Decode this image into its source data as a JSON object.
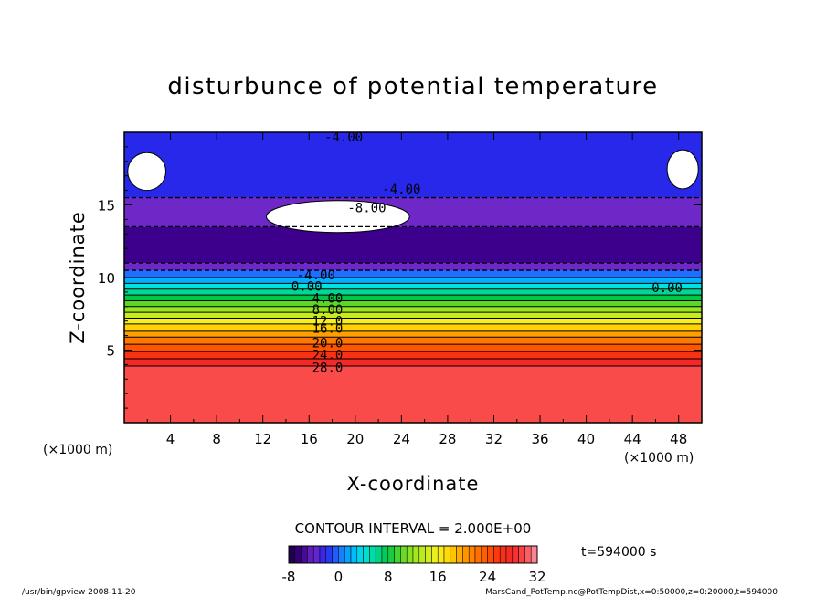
{
  "chart_data": {
    "type": "heatmap",
    "title": "disturbunce of potential temperature",
    "xlabel": "X-coordinate",
    "ylabel": "Z-coordinate",
    "x_unit": "(×1000 m)",
    "x_unit_left": "(×1000 m)",
    "xlim": [
      0,
      50
    ],
    "ylim": [
      0,
      20
    ],
    "x_ticks": [
      "4",
      "8",
      "12",
      "16",
      "20",
      "24",
      "28",
      "32",
      "36",
      "40",
      "44",
      "48"
    ],
    "y_ticks": [
      "5",
      "10",
      "15"
    ],
    "contour_interval_text": "CONTOUR INTERVAL = 2.000E+00",
    "time_text": "t=594000 s",
    "colorbar": {
      "min": -8,
      "max": 32,
      "tick_labels": [
        "-8",
        "0",
        "8",
        "16",
        "24",
        "32"
      ]
    },
    "contour_labels": [
      {
        "text": "-4.00",
        "x": 19.0,
        "z": 19.7
      },
      {
        "text": "-4.00",
        "x": 24.0,
        "z": 16.1
      },
      {
        "text": "-8.00",
        "x": 21.0,
        "z": 14.8
      },
      {
        "text": "-4.00",
        "x": 16.6,
        "z": 10.2
      },
      {
        "text": "0.00",
        "x": 15.8,
        "z": 9.4
      },
      {
        "text": "0.00",
        "x": 47.0,
        "z": 9.3
      },
      {
        "text": "4.00",
        "x": 17.6,
        "z": 8.6
      },
      {
        "text": "8.00",
        "x": 17.6,
        "z": 7.8
      },
      {
        "text": "12.0",
        "x": 17.6,
        "z": 7.0
      },
      {
        "text": "16.0",
        "x": 17.6,
        "z": 6.5
      },
      {
        "text": "20.0",
        "x": 17.6,
        "z": 5.5
      },
      {
        "text": "24.0",
        "x": 17.6,
        "z": 4.7
      },
      {
        "text": "28.0",
        "x": 17.6,
        "z": 3.8
      }
    ],
    "profile_levels": [
      {
        "z_bottom": 0.0,
        "value": 30
      },
      {
        "z_bottom": 3.9,
        "value": 28
      },
      {
        "z_bottom": 4.4,
        "value": 26
      },
      {
        "z_bottom": 4.9,
        "value": 24
      },
      {
        "z_bottom": 5.4,
        "value": 22
      },
      {
        "z_bottom": 5.9,
        "value": 20
      },
      {
        "z_bottom": 6.3,
        "value": 18
      },
      {
        "z_bottom": 6.8,
        "value": 16
      },
      {
        "z_bottom": 7.2,
        "value": 14
      },
      {
        "z_bottom": 7.6,
        "value": 12
      },
      {
        "z_bottom": 8.0,
        "value": 10
      },
      {
        "z_bottom": 8.4,
        "value": 8
      },
      {
        "z_bottom": 8.8,
        "value": 6
      },
      {
        "z_bottom": 9.2,
        "value": 4
      },
      {
        "z_bottom": 9.6,
        "value": 2
      },
      {
        "z_bottom": 10.0,
        "value": 0
      },
      {
        "z_bottom": 10.5,
        "value": -4
      },
      {
        "z_bottom": 11.0,
        "value": -6
      },
      {
        "z_bottom": 13.5,
        "value": -4
      },
      {
        "z_bottom": 15.5,
        "value": -2
      }
    ],
    "blank_regions": [
      {
        "x": [
          0.3,
          3.6
        ],
        "z": [
          16.0,
          18.6
        ]
      },
      {
        "x": [
          12.3,
          24.7
        ],
        "z": [
          13.1,
          15.3
        ]
      },
      {
        "x": [
          47.0,
          49.7
        ],
        "z": [
          16.1,
          18.8
        ]
      }
    ]
  },
  "footer": {
    "left": "/usr/bin/gpview  2008-11-20",
    "right": "MarsCand_PotTemp.nc@PotTempDist,x=0:50000,z=0:20000,t=594000"
  }
}
